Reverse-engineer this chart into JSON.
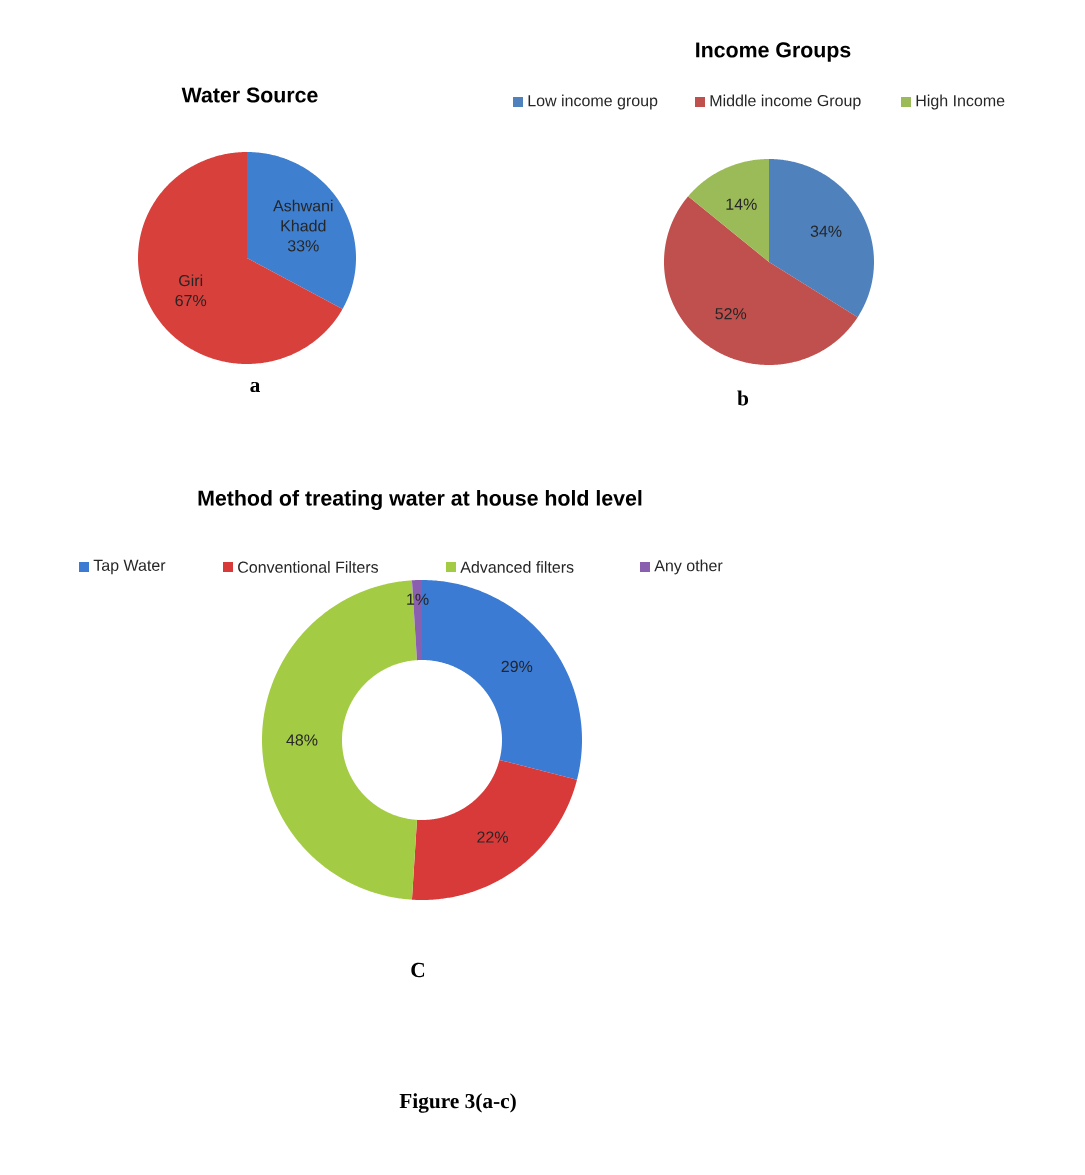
{
  "chart_data": [
    {
      "type": "pie",
      "title": "Water Source",
      "categories": [
        "Ashwani Khadd",
        "Giri"
      ],
      "values": [
        33,
        67
      ],
      "colors": [
        "#3f7fcf",
        "#d8403c"
      ],
      "value_labels": [
        "33%",
        "67%"
      ],
      "legend": false,
      "annotations": [
        "a"
      ]
    },
    {
      "type": "pie",
      "title": "Income Groups",
      "categories": [
        "Low income group",
        "Middle  income Group",
        "High Income"
      ],
      "values": [
        34,
        52,
        14
      ],
      "colors": [
        "#4f81bd",
        "#c0504d",
        "#9bbb59"
      ],
      "value_labels": [
        "34%",
        "52%",
        "14%"
      ],
      "legend": "top",
      "annotations": [
        "b"
      ]
    },
    {
      "type": "donut",
      "title": "Method of  treating  water at house hold  level",
      "categories": [
        "Tap Water",
        "Conventional Filters",
        "Advanced filters",
        "Any other"
      ],
      "values": [
        29,
        22,
        48,
        1
      ],
      "colors": [
        "#3b7bd4",
        "#d83a3a",
        "#a3cc44",
        "#8a5fb0"
      ],
      "value_labels": [
        "29%",
        "22%",
        "48%",
        "1%"
      ],
      "legend": "top",
      "annotations": [
        "C",
        "Figure 3(a-c)"
      ]
    }
  ]
}
